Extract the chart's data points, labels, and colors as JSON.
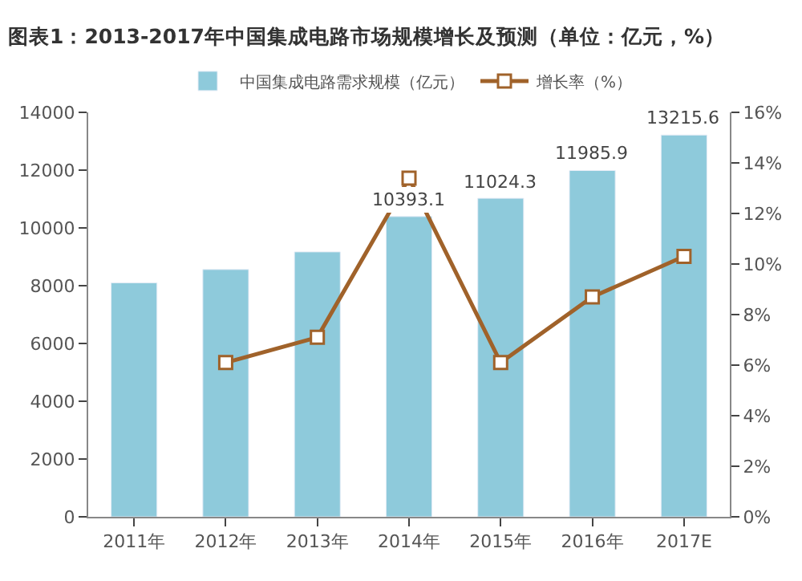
{
  "chart_data": {
    "type": "bar",
    "title": "图表1：2013-2017年中国集成电路市场规模增长及预测（单位：亿元，%）",
    "categories": [
      "2011年",
      "2012年",
      "2013年",
      "2014年",
      "2015年",
      "2016年",
      "2017E"
    ],
    "series": [
      {
        "name": "中国集成电路需求规模（亿元）",
        "color": "#8ecadb",
        "values": [
          8100,
          8560,
          9170,
          10393.1,
          11024.3,
          11985.9,
          13215.6
        ],
        "value_labels": [
          null,
          null,
          null,
          "10393.1",
          "11024.3",
          "11985.9",
          "13215.6"
        ]
      },
      {
        "name": "增长率（%）",
        "type": "line",
        "axis": "y2",
        "color": "#a0622a",
        "marker": "square",
        "values": [
          null,
          6.1,
          7.1,
          13.4,
          6.1,
          8.7,
          10.3
        ]
      }
    ],
    "ylim": [
      0,
      14000
    ],
    "yticks": [
      0,
      2000,
      4000,
      6000,
      8000,
      10000,
      12000,
      14000
    ],
    "y2lim": [
      0,
      16
    ],
    "y2ticks": [
      {
        "value": 0,
        "label": "0%"
      },
      {
        "value": 2,
        "label": "2%"
      },
      {
        "value": 4,
        "label": "4%"
      },
      {
        "value": 6,
        "label": "6%"
      },
      {
        "value": 8,
        "label": "8%"
      },
      {
        "value": 10,
        "label": "10%"
      },
      {
        "value": 12,
        "label": "12%"
      },
      {
        "value": 14,
        "label": "14%"
      },
      {
        "value": 16,
        "label": "16%"
      }
    ],
    "legend": "top"
  }
}
